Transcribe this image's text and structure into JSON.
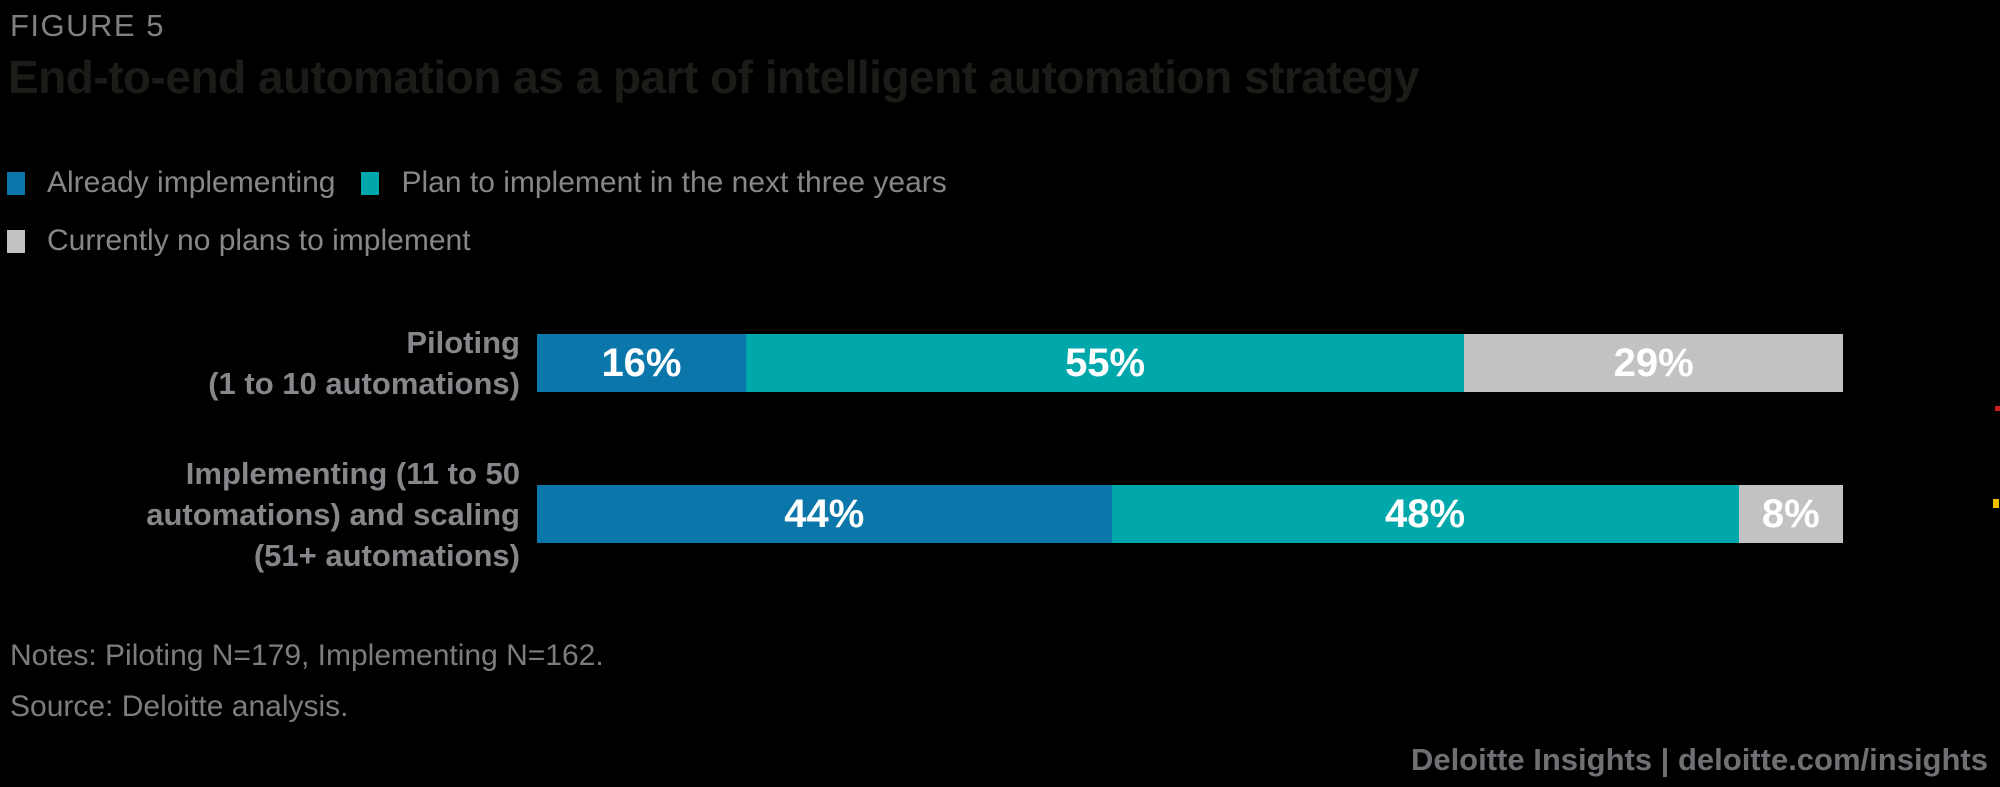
{
  "figure_label": "FIGURE 5",
  "title": "End-to-end automation as a part of intelligent automation strategy",
  "notes": "Notes: Piloting N=179, Implementing N=162.",
  "source": "Source: Deloitte analysis.",
  "footer_credit": "Deloitte Insights | deloitte.com/insights",
  "colors": {
    "background": "#000000",
    "title_text": "#1C1B17",
    "figure_label_text": "#7E8083",
    "legend_text": "#85878A",
    "category_label_text": "#85878A",
    "value_label_text": "#FFFFFF",
    "notes_text": "#7B7D80",
    "footer_text": "#6E7073",
    "artifact_red": "#C81E1E",
    "artifact_yellow": "#F0C000"
  },
  "chart_data": {
    "type": "bar",
    "orientation": "horizontal-stacked",
    "title": "End-to-end automation as a part of intelligent automation strategy",
    "xlabel": "",
    "ylabel": "",
    "xlim": [
      0,
      100
    ],
    "grid": false,
    "legend_position": "top-left",
    "categories": [
      "Piloting (1 to 10 automations)",
      "Implementing (11 to 50 automations) and scaling (51+ automations)"
    ],
    "category_lines": [
      [
        "Piloting",
        "(1 to 10 automations)"
      ],
      [
        "Implementing (11 to 50",
        "automations) and scaling",
        "(51+ automations)"
      ]
    ],
    "series": [
      {
        "name": "Already implementing",
        "color": "#0B76A9",
        "values": [
          16,
          44
        ]
      },
      {
        "name": "Plan to implement in the next three years",
        "color": "#00A8AB",
        "values": [
          55,
          48
        ]
      },
      {
        "name": "Currently no plans to implement",
        "color": "#C1C2C4",
        "values": [
          29,
          8
        ]
      }
    ],
    "value_labels": [
      [
        "16%",
        "55%",
        "29%"
      ],
      [
        "44%",
        "48%",
        "8%"
      ]
    ]
  }
}
